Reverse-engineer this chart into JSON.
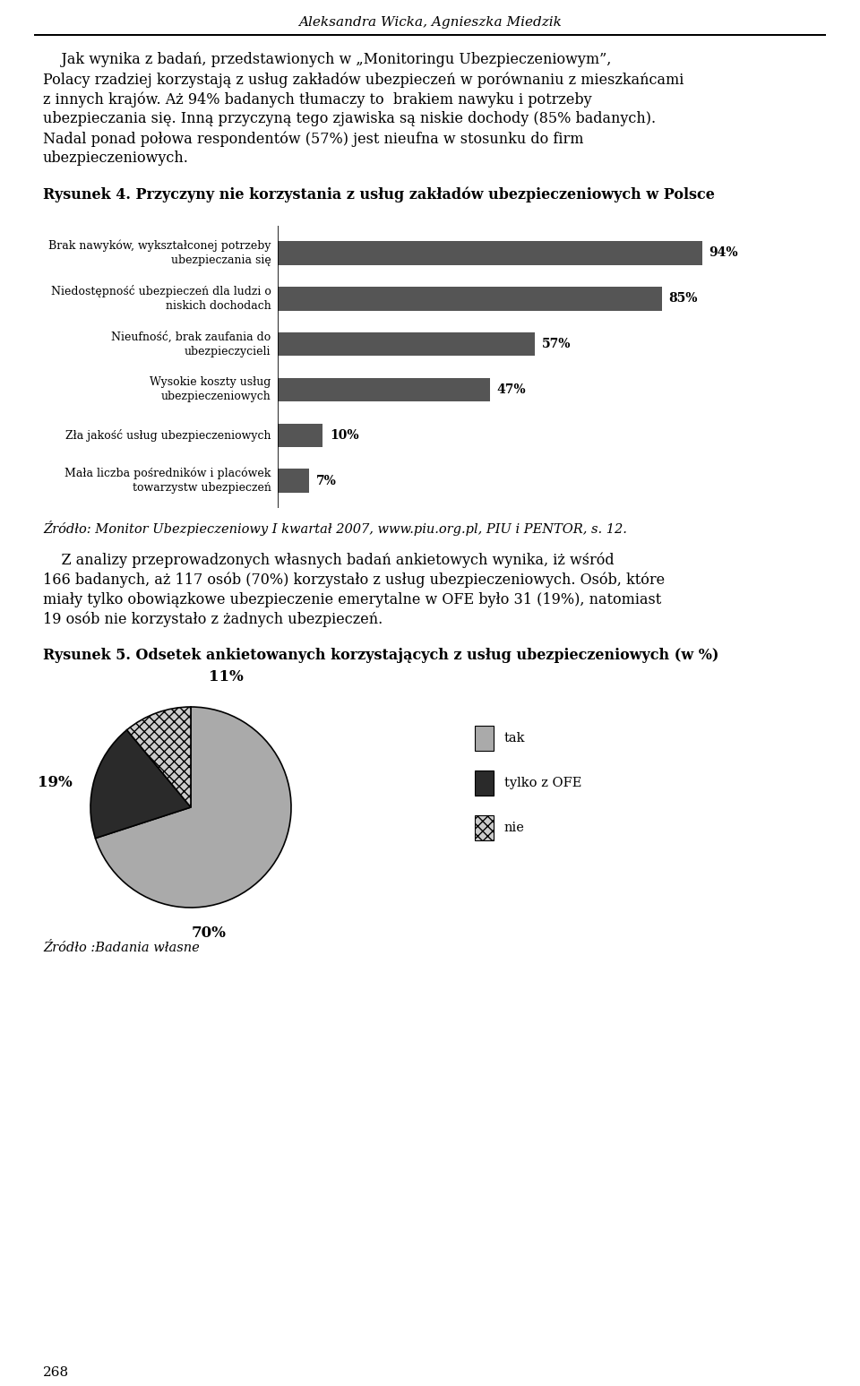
{
  "page_title": "Aleksandra Wicka, Agnieszka Miedzik",
  "para1_lines": [
    "    Jak wynika z badań, przedstawionych w „Monitoringu Ubezpieczeniowym”,",
    "Polacy rzadziej korzystają z usług zakładów ubezpieczeń w porównaniu z mieszkańcami",
    "z innych krajów. Aż 94% badanych tłumaczy to  brakiem nawyku i potrzeby",
    "ubezpieczania się. Inną przyczyną tego zjawiska są niskie dochody (85% badanych).",
    "Nadal ponad połowa respondentów (57%) jest nieufna w stosunku do firm",
    "ubezpieczeniowych."
  ],
  "fig4_title": "Rysunek 4. Przyczyny nie korzystania z usług zakładów ubezpieczeniowych w Polsce",
  "bar_labels": [
    "Brak nawyków, wykształconej potrzeby\nubezpieczania się",
    "Niedostępność ubezpieczeń dla ludzi o\nniskich dochodach",
    "Nieufność, brak zaufania do\nubezpieczycieli",
    "Wysokie koszty usług\nubezpieczeniowych",
    "Zła jakość usług ubezpieczeniowych",
    "Mała liczba pośredników i placówek\ntowarzystw ubezpieczeń"
  ],
  "bar_values": [
    94,
    85,
    57,
    47,
    10,
    7
  ],
  "bar_color": "#555555",
  "source1": "Źródło: Monitor Ubezpieczeniowy I kwartał 2007, www.piu.org.pl, PIU i PENTOR, s. 12.",
  "para2_lines": [
    "    Z analizy przeprowadzonych własnych badań ankietowych wynika, iż wśród",
    "166 badanych, aż 117 osób (70%) korzystało z usług ubezpieczeniowych. Osób, które",
    "miały tylko obowiązkowe ubezpieczenie emerytalne w OFE było 31 (19%), natomiast",
    "19 osób nie korzystało z żadnych ubezpieczeń."
  ],
  "fig5_title": "Rysunek 5. Odsetek ankietowanych korzystających z usług ubezpieczeniowych (w %)",
  "pie_values": [
    70,
    19,
    11
  ],
  "pie_legend": [
    "tak",
    "tylko z OFE",
    "nie"
  ],
  "source2": "Źródło :Badania własne",
  "page_number": "268",
  "background": "#ffffff"
}
